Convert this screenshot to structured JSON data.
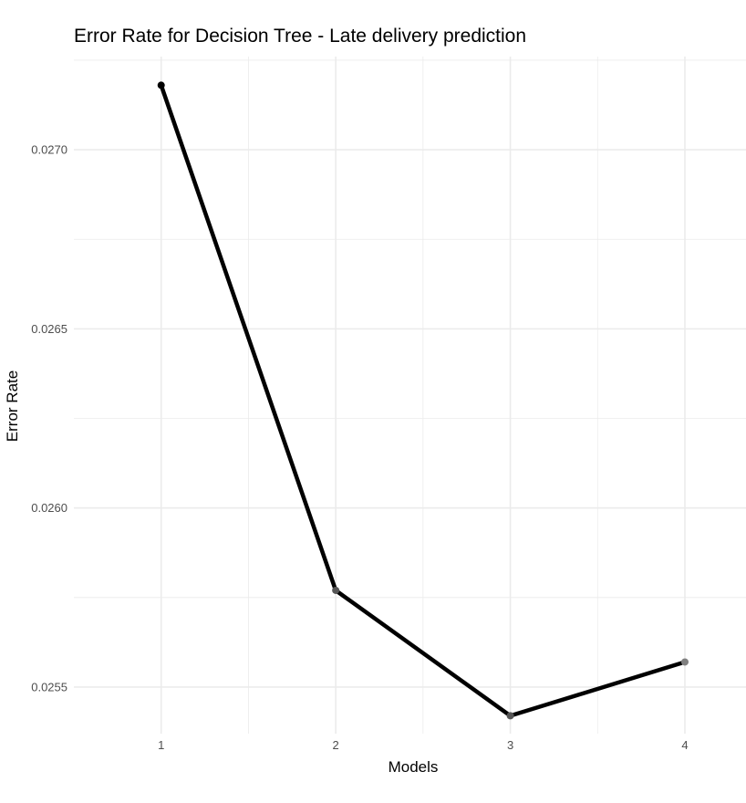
{
  "chart_data": {
    "type": "line",
    "title": "Error Rate for Decision Tree - Late delivery prediction",
    "xlabel": "Models",
    "ylabel": "Error Rate",
    "x": [
      1,
      2,
      3,
      4
    ],
    "x_tick_labels": [
      "1",
      "2",
      "3",
      "4"
    ],
    "xlim": [
      0.5,
      4.35
    ],
    "series": [
      {
        "values": [
          0.02718,
          0.02577,
          0.02542,
          0.02557
        ]
      }
    ],
    "point_colors": [
      "#000000",
      "#555555",
      "#555555",
      "#808080"
    ],
    "y_ticks": [
      0.0255,
      0.026,
      0.0265,
      0.027
    ],
    "y_tick_labels": [
      "0.0255",
      "0.0260",
      "0.0265",
      "0.0270"
    ],
    "ylim": [
      0.02537,
      0.02726
    ],
    "grid": true,
    "line_color": "#000000",
    "grid_color": "#ebebeb"
  }
}
